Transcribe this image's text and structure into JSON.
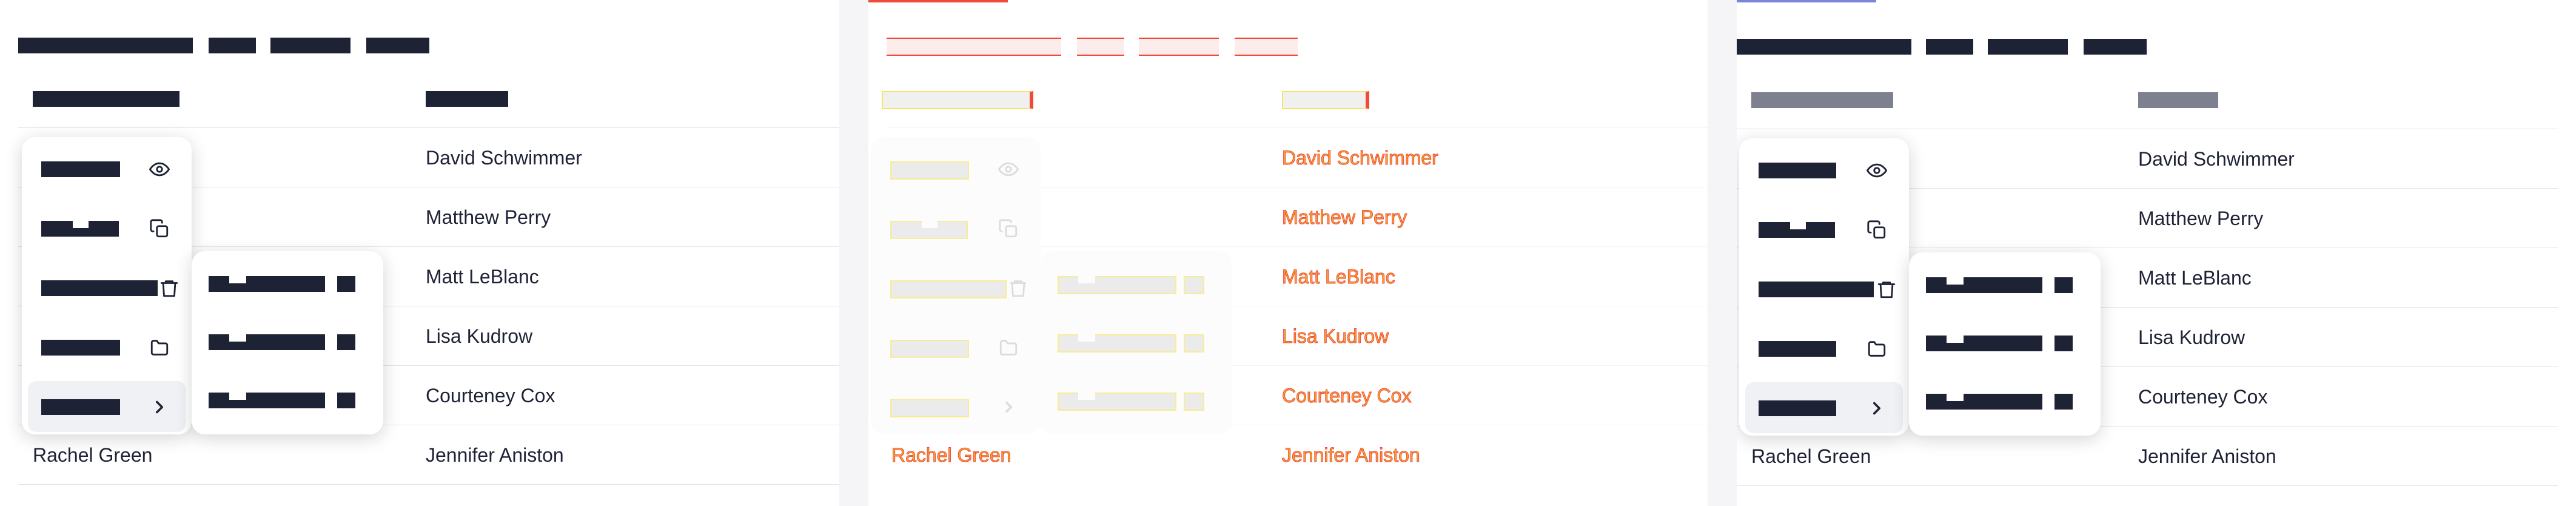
{
  "table": {
    "rows": [
      {
        "col2": "David Schwimmer"
      },
      {
        "col2": "Matthew Perry"
      },
      {
        "col2": "Matt LeBlanc"
      },
      {
        "col2": "Lisa Kudrow"
      },
      {
        "col2": "Courteney Cox"
      },
      {
        "col1": "Rachel Green",
        "col2": "Jennifer Aniston"
      }
    ]
  },
  "menu": {
    "icons": [
      "eye-icon",
      "copy-icon",
      "trash-icon",
      "folder-icon",
      "chevron-right-icon"
    ]
  },
  "colors": {
    "text": "#1e2235",
    "diff_red": "#f24a3a",
    "diff_orange": "#f0a530",
    "diff_yellow": "#f6e36a"
  }
}
